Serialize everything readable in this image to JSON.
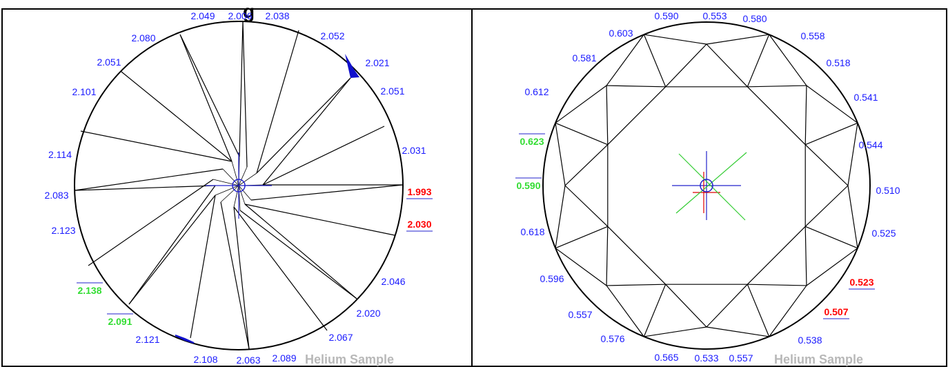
{
  "title_fragment": "g",
  "colors": {
    "label": "#1a1aff",
    "min_highlight": "#ff0000",
    "max_highlight": "#33dd33",
    "watermark": "#b8b8b8",
    "marker_blue": "#2222cc",
    "marker_red": "#dd0000",
    "marker_green": "#33cc33",
    "chip_fill": "#1111cc"
  },
  "pavilion_panel": {
    "watermark": "Helium Sample",
    "labels": [
      {
        "text": "2.049",
        "style": "normal"
      },
      {
        "text": "2.006",
        "style": "normal"
      },
      {
        "text": "2.038",
        "style": "normal"
      },
      {
        "text": "2.052",
        "style": "normal"
      },
      {
        "text": "2.080",
        "style": "normal"
      },
      {
        "text": "2.021",
        "style": "normal"
      },
      {
        "text": "2.051",
        "style": "normal"
      },
      {
        "text": "2.051",
        "style": "normal"
      },
      {
        "text": "2.101",
        "style": "normal"
      },
      {
        "text": "2.031",
        "style": "normal"
      },
      {
        "text": "2.114",
        "style": "normal"
      },
      {
        "text": "1.993",
        "style": "min"
      },
      {
        "text": "2.083",
        "style": "normal"
      },
      {
        "text": "2.030",
        "style": "min"
      },
      {
        "text": "2.123",
        "style": "normal"
      },
      {
        "text": "2.046",
        "style": "normal"
      },
      {
        "text": "2.138",
        "style": "max"
      },
      {
        "text": "2.020",
        "style": "normal"
      },
      {
        "text": "2.091",
        "style": "max"
      },
      {
        "text": "2.067",
        "style": "normal"
      },
      {
        "text": "2.121",
        "style": "normal"
      },
      {
        "text": "2.108",
        "style": "normal"
      },
      {
        "text": "2.063",
        "style": "normal"
      },
      {
        "text": "2.089",
        "style": "normal"
      }
    ]
  },
  "crown_panel": {
    "watermark": "Helium Sample",
    "labels": [
      {
        "text": "0.590",
        "style": "normal"
      },
      {
        "text": "0.553",
        "style": "normal"
      },
      {
        "text": "0.580",
        "style": "normal"
      },
      {
        "text": "0.603",
        "style": "normal"
      },
      {
        "text": "0.558",
        "style": "normal"
      },
      {
        "text": "0.581",
        "style": "normal"
      },
      {
        "text": "0.518",
        "style": "normal"
      },
      {
        "text": "0.612",
        "style": "normal"
      },
      {
        "text": "0.541",
        "style": "normal"
      },
      {
        "text": "0.623",
        "style": "max"
      },
      {
        "text": "0.544",
        "style": "normal"
      },
      {
        "text": "0.590",
        "style": "max"
      },
      {
        "text": "0.510",
        "style": "normal"
      },
      {
        "text": "0.618",
        "style": "normal"
      },
      {
        "text": "0.525",
        "style": "normal"
      },
      {
        "text": "0.596",
        "style": "normal"
      },
      {
        "text": "0.523",
        "style": "min"
      },
      {
        "text": "0.557",
        "style": "normal"
      },
      {
        "text": "0.507",
        "style": "min"
      },
      {
        "text": "0.576",
        "style": "normal"
      },
      {
        "text": "0.538",
        "style": "normal"
      },
      {
        "text": "0.565",
        "style": "normal"
      },
      {
        "text": "0.533",
        "style": "normal"
      },
      {
        "text": "0.557",
        "style": "normal"
      }
    ]
  }
}
